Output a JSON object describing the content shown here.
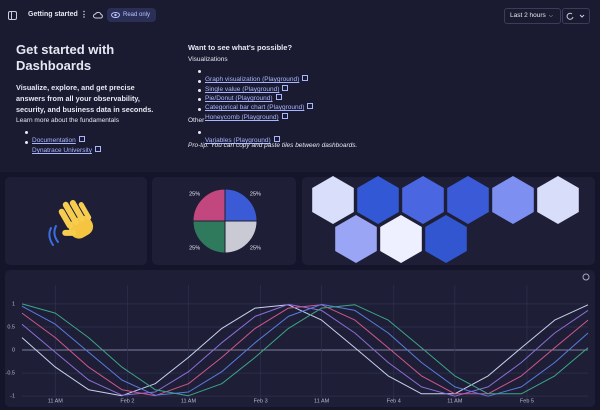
{
  "toolbar": {
    "title": "Getting started",
    "badge": "Read only",
    "timeframe": "Last 2 hours"
  },
  "intro": {
    "heading": "Get started with Dashboards",
    "lead": "Visualize, explore, and get precise answers from all your observability, security, and business data in seconds.",
    "learn": "Learn more about the fundamentals",
    "links": [
      "Documentation",
      "Dynatrace University"
    ]
  },
  "possible": {
    "heading": "Want to see what's possible?",
    "groups": [
      {
        "title": "Visualizations",
        "links": [
          "Graph visualization (Playground)",
          "Single value (Playground)",
          "Pie/Donut (Playground)",
          "Categorical bar chart (Playground)",
          "Honeycomb (Playground)"
        ]
      },
      {
        "title": "Other",
        "links": [
          "Variables (Playground)"
        ]
      }
    ],
    "tip": "Pro-tip: You can copy and paste tiles between dashboards."
  },
  "pie_chart": {
    "type": "pie",
    "values": [
      25,
      25,
      25,
      25
    ],
    "value_labels": [
      "25%",
      "25%",
      "25%",
      "25%"
    ],
    "colors": [
      "#3b5bd6",
      "#c9cad3",
      "#2f7a5c",
      "#c2477f"
    ]
  },
  "honeycomb": {
    "type": "honeycomb",
    "colors": [
      "#d9defa",
      "#3358d6",
      "#4a66e0",
      "#3a5ad8",
      "#7d8ff0",
      "#d8ddfa",
      "#9aa6f5",
      "#eef0ff",
      "#3156d0"
    ]
  },
  "line_chart": {
    "type": "line",
    "x": [
      5,
      11,
      17,
      23,
      29,
      35,
      41,
      47,
      53,
      59,
      65,
      71,
      77,
      83,
      89,
      95,
      101,
      107
    ],
    "series": [
      {
        "color": "#c8d0f0",
        "values": [
          0.27,
          -0.37,
          -0.86,
          -0.99,
          -0.73,
          -0.16,
          0.47,
          0.91,
          0.98,
          0.65,
          0.05,
          -0.56,
          -0.95,
          -0.95,
          -0.56,
          0.05,
          0.65,
          0.98
        ]
      },
      {
        "color": "#8a6fd8",
        "values": [
          0.56,
          -0.05,
          -0.65,
          -0.98,
          -0.91,
          -0.47,
          0.16,
          0.73,
          0.99,
          0.86,
          0.37,
          -0.27,
          -0.8,
          -1,
          -0.8,
          -0.27,
          0.37,
          0.86
        ]
      },
      {
        "color": "#d0568f",
        "values": [
          0.8,
          0.27,
          -0.37,
          -0.86,
          -0.99,
          -0.73,
          -0.16,
          0.47,
          0.91,
          0.98,
          0.65,
          0.05,
          -0.56,
          -0.95,
          -0.95,
          -0.56,
          0.05,
          0.65
        ]
      },
      {
        "color": "#5a7be0",
        "values": [
          0.95,
          0.56,
          -0.05,
          -0.65,
          -0.98,
          -0.91,
          -0.47,
          0.16,
          0.73,
          0.99,
          0.86,
          0.37,
          -0.27,
          -0.8,
          -1,
          -0.8,
          -0.27,
          0.37
        ]
      },
      {
        "color": "#3da58a",
        "values": [
          1,
          0.8,
          0.27,
          -0.37,
          -0.86,
          -0.99,
          -0.73,
          -0.16,
          0.47,
          0.91,
          0.98,
          0.65,
          0.05,
          -0.56,
          -0.95,
          -0.95,
          -0.56,
          0.05
        ]
      }
    ],
    "xlim": [
      5,
      107
    ],
    "ylim": [
      -1.04,
      1.41
    ],
    "xticks": [
      {
        "value": 11,
        "label": "11 AM"
      },
      {
        "value": 24,
        "label": "Feb 2"
      },
      {
        "value": 35,
        "label": "11 AM"
      },
      {
        "value": 48,
        "label": "Feb 3"
      },
      {
        "value": 59,
        "label": "11 AM"
      },
      {
        "value": 72,
        "label": "Feb 4"
      },
      {
        "value": 83,
        "label": "11 AM"
      },
      {
        "value": 96,
        "label": "Feb 5"
      }
    ],
    "yticks": [
      1,
      0.5,
      0,
      -0.5,
      -1
    ],
    "grid": true
  }
}
